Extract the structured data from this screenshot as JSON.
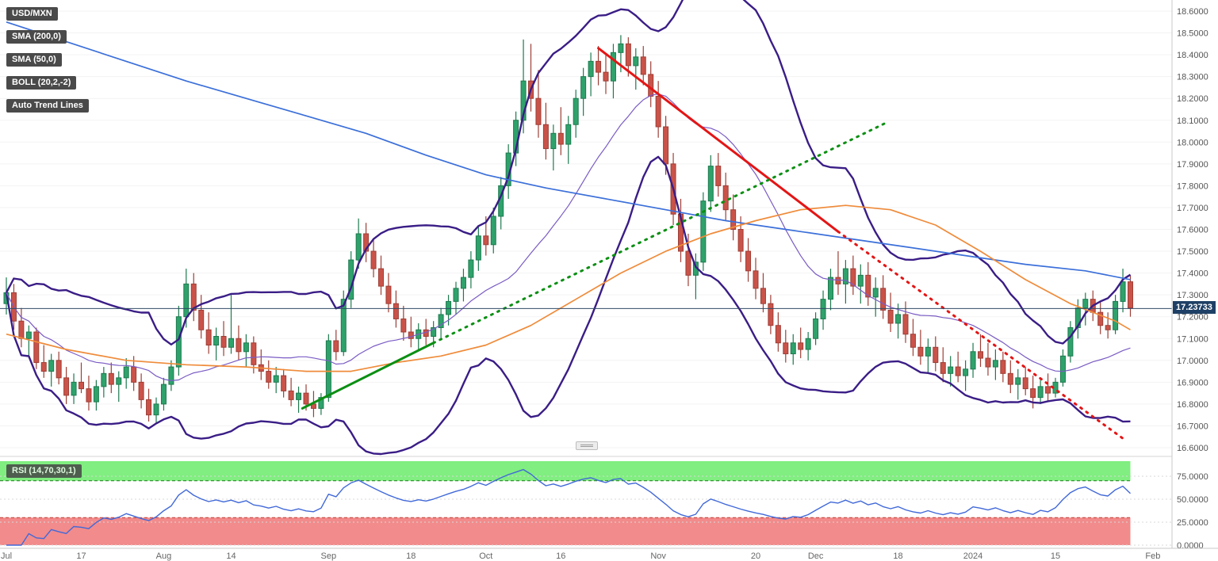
{
  "legend": {
    "pair": "USD/MXN",
    "items": [
      {
        "label": "SMA (200,0)"
      },
      {
        "label": "SMA (50,0)"
      },
      {
        "label": "BOLL (20,2,-2)"
      },
      {
        "label": "Auto Trend Lines"
      }
    ]
  },
  "chart_data": {
    "type": "candlestick",
    "symbol": "USD/MXN",
    "current_price": 17.23733,
    "current_price_label": "17.23733",
    "y_axis": {
      "min": 16.6,
      "max": 18.6,
      "step": 0.1,
      "tick_labels": [
        "18.6000",
        "18.5000",
        "18.4000",
        "18.3000",
        "18.2000",
        "18.1000",
        "18.0000",
        "17.9000",
        "17.8000",
        "17.7000",
        "17.6000",
        "17.5000",
        "17.4000",
        "17.3000",
        "17.2000",
        "17.1000",
        "17.0000",
        "16.9000",
        "16.8000",
        "16.7000",
        "16.6000"
      ]
    },
    "x_axis_labels": [
      {
        "text": "Jul",
        "i": 0
      },
      {
        "text": "17",
        "i": 10
      },
      {
        "text": "Aug",
        "i": 21
      },
      {
        "text": "14",
        "i": 30
      },
      {
        "text": "Sep",
        "i": 43
      },
      {
        "text": "18",
        "i": 54
      },
      {
        "text": "Oct",
        "i": 64
      },
      {
        "text": "16",
        "i": 74
      },
      {
        "text": "Nov",
        "i": 87
      },
      {
        "text": "20",
        "i": 100
      },
      {
        "text": "Dec",
        "i": 108
      },
      {
        "text": "18",
        "i": 119
      },
      {
        "text": "2024",
        "i": 129
      },
      {
        "text": "15",
        "i": 140
      },
      {
        "text": "Feb",
        "i": 153
      }
    ],
    "colors": {
      "up_fill": "#2fa26b",
      "up_border": "#1d7a4f",
      "down_fill": "#ca5349",
      "down_border": "#9e3e36",
      "price_line": "#2f4a66",
      "price_badge_bg": "#1f4066"
    },
    "candles_ohlc": [
      [
        17.26,
        17.38,
        17.21,
        17.31
      ],
      [
        17.31,
        17.35,
        17.14,
        17.18
      ],
      [
        17.18,
        17.24,
        17.06,
        17.1
      ],
      [
        17.1,
        17.16,
        17.02,
        17.13
      ],
      [
        17.13,
        17.15,
        16.96,
        16.99
      ],
      [
        16.99,
        17.07,
        16.92,
        16.95
      ],
      [
        16.95,
        17.03,
        16.88,
        17.0
      ],
      [
        17.0,
        17.04,
        16.89,
        16.92
      ],
      [
        16.92,
        16.97,
        16.8,
        16.84
      ],
      [
        16.84,
        16.94,
        16.8,
        16.9
      ],
      [
        16.9,
        16.99,
        16.85,
        16.87
      ],
      [
        16.87,
        16.93,
        16.77,
        16.81
      ],
      [
        16.81,
        16.91,
        16.77,
        16.88
      ],
      [
        16.88,
        16.97,
        16.83,
        16.94
      ],
      [
        16.94,
        16.99,
        16.85,
        16.89
      ],
      [
        16.89,
        16.95,
        16.81,
        16.92
      ],
      [
        16.92,
        17.01,
        16.87,
        16.97
      ],
      [
        16.97,
        17.02,
        16.86,
        16.9
      ],
      [
        16.9,
        16.94,
        16.78,
        16.82
      ],
      [
        16.82,
        16.87,
        16.72,
        16.75
      ],
      [
        16.75,
        16.83,
        16.71,
        16.8
      ],
      [
        16.8,
        16.92,
        16.77,
        16.89
      ],
      [
        16.89,
        17.0,
        16.86,
        16.97
      ],
      [
        16.97,
        17.25,
        16.93,
        17.2
      ],
      [
        17.2,
        17.42,
        17.15,
        17.35
      ],
      [
        17.35,
        17.4,
        17.18,
        17.23
      ],
      [
        17.23,
        17.3,
        17.1,
        17.14
      ],
      [
        17.14,
        17.22,
        17.03,
        17.07
      ],
      [
        17.07,
        17.15,
        17.0,
        17.11
      ],
      [
        17.11,
        17.18,
        17.02,
        17.06
      ],
      [
        17.06,
        17.3,
        17.03,
        17.1
      ],
      [
        17.1,
        17.16,
        17.0,
        17.04
      ],
      [
        17.04,
        17.12,
        16.97,
        17.08
      ],
      [
        17.08,
        17.11,
        16.94,
        16.98
      ],
      [
        16.98,
        17.05,
        16.91,
        16.95
      ],
      [
        16.95,
        17.0,
        16.87,
        16.9
      ],
      [
        16.9,
        16.97,
        16.85,
        16.93
      ],
      [
        16.93,
        16.96,
        16.83,
        16.86
      ],
      [
        16.86,
        16.92,
        16.79,
        16.82
      ],
      [
        16.82,
        16.88,
        16.76,
        16.85
      ],
      [
        16.85,
        16.89,
        16.77,
        16.8
      ],
      [
        16.8,
        16.86,
        16.74,
        16.78
      ],
      [
        16.78,
        16.85,
        16.75,
        16.83
      ],
      [
        16.83,
        17.12,
        16.81,
        17.09
      ],
      [
        17.09,
        17.14,
        17.0,
        17.04
      ],
      [
        17.04,
        17.32,
        17.02,
        17.28
      ],
      [
        17.28,
        17.5,
        17.24,
        17.46
      ],
      [
        17.46,
        17.65,
        17.42,
        17.58
      ],
      [
        17.58,
        17.63,
        17.45,
        17.5
      ],
      [
        17.5,
        17.56,
        17.38,
        17.42
      ],
      [
        17.42,
        17.48,
        17.3,
        17.34
      ],
      [
        17.34,
        17.4,
        17.22,
        17.26
      ],
      [
        17.26,
        17.32,
        17.15,
        17.19
      ],
      [
        17.19,
        17.25,
        17.09,
        17.13
      ],
      [
        17.13,
        17.2,
        17.06,
        17.1
      ],
      [
        17.1,
        17.17,
        17.05,
        17.14
      ],
      [
        17.14,
        17.19,
        17.07,
        17.11
      ],
      [
        17.11,
        17.18,
        17.06,
        17.15
      ],
      [
        17.15,
        17.24,
        17.1,
        17.21
      ],
      [
        17.21,
        17.3,
        17.16,
        17.27
      ],
      [
        17.27,
        17.36,
        17.21,
        17.33
      ],
      [
        17.33,
        17.42,
        17.27,
        17.38
      ],
      [
        17.38,
        17.5,
        17.33,
        17.46
      ],
      [
        17.46,
        17.62,
        17.41,
        17.57
      ],
      [
        17.57,
        17.66,
        17.48,
        17.53
      ],
      [
        17.53,
        17.7,
        17.49,
        17.66
      ],
      [
        17.66,
        17.84,
        17.6,
        17.8
      ],
      [
        17.8,
        17.99,
        17.74,
        17.95
      ],
      [
        17.95,
        18.14,
        17.89,
        18.1
      ],
      [
        18.1,
        18.47,
        18.04,
        18.28
      ],
      [
        18.28,
        18.45,
        18.14,
        18.2
      ],
      [
        18.2,
        18.33,
        18.02,
        18.08
      ],
      [
        18.08,
        18.18,
        17.92,
        17.97
      ],
      [
        17.97,
        18.08,
        17.87,
        18.04
      ],
      [
        18.04,
        18.16,
        17.94,
        17.99
      ],
      [
        17.99,
        18.12,
        17.9,
        18.08
      ],
      [
        18.08,
        18.24,
        18.02,
        18.2
      ],
      [
        18.2,
        18.34,
        18.12,
        18.3
      ],
      [
        18.3,
        18.41,
        18.21,
        18.37
      ],
      [
        18.37,
        18.44,
        18.26,
        18.32
      ],
      [
        18.32,
        18.4,
        18.22,
        18.28
      ],
      [
        18.28,
        18.45,
        18.2,
        18.41
      ],
      [
        18.41,
        18.49,
        18.32,
        18.45
      ],
      [
        18.45,
        18.48,
        18.3,
        18.35
      ],
      [
        18.35,
        18.43,
        18.24,
        18.39
      ],
      [
        18.39,
        18.44,
        18.26,
        18.31
      ],
      [
        18.31,
        18.37,
        18.16,
        18.21
      ],
      [
        18.21,
        18.28,
        18.02,
        18.07
      ],
      [
        18.07,
        18.12,
        17.85,
        17.9
      ],
      [
        17.9,
        17.95,
        17.62,
        17.67
      ],
      [
        17.67,
        17.74,
        17.45,
        17.5
      ],
      [
        17.5,
        17.58,
        17.34,
        17.39
      ],
      [
        17.39,
        17.49,
        17.28,
        17.45
      ],
      [
        17.45,
        17.77,
        17.41,
        17.73
      ],
      [
        17.73,
        17.94,
        17.68,
        17.89
      ],
      [
        17.89,
        17.95,
        17.75,
        17.8
      ],
      [
        17.8,
        17.86,
        17.64,
        17.69
      ],
      [
        17.69,
        17.76,
        17.55,
        17.6
      ],
      [
        17.6,
        17.66,
        17.45,
        17.5
      ],
      [
        17.5,
        17.56,
        17.36,
        17.41
      ],
      [
        17.41,
        17.47,
        17.28,
        17.33
      ],
      [
        17.33,
        17.4,
        17.22,
        17.26
      ],
      [
        17.26,
        17.3,
        17.12,
        17.16
      ],
      [
        17.16,
        17.22,
        17.04,
        17.08
      ],
      [
        17.08,
        17.14,
        16.99,
        17.03
      ],
      [
        17.03,
        17.12,
        16.98,
        17.08
      ],
      [
        17.08,
        17.15,
        17.01,
        17.05
      ],
      [
        17.05,
        17.13,
        17.0,
        17.1
      ],
      [
        17.1,
        17.22,
        17.07,
        17.19
      ],
      [
        17.19,
        17.32,
        17.14,
        17.28
      ],
      [
        17.28,
        17.42,
        17.23,
        17.38
      ],
      [
        17.38,
        17.5,
        17.3,
        17.35
      ],
      [
        17.35,
        17.46,
        17.26,
        17.42
      ],
      [
        17.42,
        17.48,
        17.3,
        17.34
      ],
      [
        17.34,
        17.44,
        17.26,
        17.39
      ],
      [
        17.39,
        17.45,
        17.25,
        17.29
      ],
      [
        17.29,
        17.38,
        17.2,
        17.33
      ],
      [
        17.33,
        17.39,
        17.19,
        17.23
      ],
      [
        17.23,
        17.31,
        17.13,
        17.17
      ],
      [
        17.17,
        17.26,
        17.1,
        17.21
      ],
      [
        17.21,
        17.27,
        17.08,
        17.12
      ],
      [
        17.12,
        17.19,
        17.02,
        17.06
      ],
      [
        17.06,
        17.14,
        16.98,
        17.02
      ],
      [
        17.02,
        17.1,
        16.94,
        17.06
      ],
      [
        17.06,
        17.11,
        16.95,
        16.99
      ],
      [
        16.99,
        17.06,
        16.9,
        16.94
      ],
      [
        16.94,
        17.02,
        16.88,
        16.97
      ],
      [
        16.97,
        17.04,
        16.9,
        16.93
      ],
      [
        16.93,
        17.0,
        16.86,
        16.96
      ],
      [
        16.96,
        17.08,
        16.92,
        17.04
      ],
      [
        17.04,
        17.12,
        16.97,
        17.01
      ],
      [
        17.01,
        17.08,
        16.93,
        16.97
      ],
      [
        16.97,
        17.05,
        16.91,
        17.0
      ],
      [
        17.0,
        17.04,
        16.9,
        16.94
      ],
      [
        16.94,
        17.0,
        16.85,
        16.89
      ],
      [
        16.89,
        16.96,
        16.82,
        16.92
      ],
      [
        16.92,
        16.97,
        16.84,
        16.87
      ],
      [
        16.87,
        16.93,
        16.78,
        16.83
      ],
      [
        16.83,
        16.91,
        16.8,
        16.88
      ],
      [
        16.88,
        16.94,
        16.81,
        16.85
      ],
      [
        16.85,
        16.92,
        16.83,
        16.9
      ],
      [
        16.9,
        17.05,
        16.88,
        17.02
      ],
      [
        17.02,
        17.18,
        16.99,
        17.15
      ],
      [
        17.15,
        17.28,
        17.1,
        17.24
      ],
      [
        17.24,
        17.31,
        17.16,
        17.28
      ],
      [
        17.28,
        17.32,
        17.18,
        17.22
      ],
      [
        17.22,
        17.27,
        17.12,
        17.16
      ],
      [
        17.16,
        17.22,
        17.1,
        17.14
      ],
      [
        17.14,
        17.3,
        17.12,
        17.27
      ],
      [
        17.27,
        17.42,
        17.22,
        17.36
      ],
      [
        17.36,
        17.39,
        17.2,
        17.24
      ]
    ],
    "overlays": {
      "sma200": {
        "label": "SMA (200,0)",
        "color": "#3b6fd9",
        "points": [
          [
            0,
            18.55
          ],
          [
            8,
            18.46
          ],
          [
            16,
            18.37
          ],
          [
            24,
            18.28
          ],
          [
            32,
            18.2
          ],
          [
            40,
            18.12
          ],
          [
            48,
            18.04
          ],
          [
            56,
            17.94
          ],
          [
            64,
            17.85
          ],
          [
            72,
            17.79
          ],
          [
            80,
            17.74
          ],
          [
            88,
            17.69
          ],
          [
            96,
            17.64
          ],
          [
            104,
            17.6
          ],
          [
            112,
            17.56
          ],
          [
            120,
            17.52
          ],
          [
            128,
            17.48
          ],
          [
            136,
            17.44
          ],
          [
            144,
            17.41
          ],
          [
            150,
            17.37
          ]
        ]
      },
      "sma50": {
        "label": "SMA (50,0)",
        "color": "#ef8b3a",
        "points": [
          [
            0,
            17.12
          ],
          [
            8,
            17.05
          ],
          [
            16,
            17.0
          ],
          [
            24,
            16.98
          ],
          [
            32,
            16.97
          ],
          [
            40,
            16.95
          ],
          [
            46,
            16.95
          ],
          [
            52,
            16.99
          ],
          [
            58,
            17.02
          ],
          [
            64,
            17.07
          ],
          [
            70,
            17.16
          ],
          [
            76,
            17.28
          ],
          [
            82,
            17.4
          ],
          [
            88,
            17.5
          ],
          [
            94,
            17.58
          ],
          [
            100,
            17.64
          ],
          [
            106,
            17.69
          ],
          [
            112,
            17.71
          ],
          [
            118,
            17.69
          ],
          [
            124,
            17.62
          ],
          [
            130,
            17.5
          ],
          [
            136,
            17.37
          ],
          [
            142,
            17.26
          ],
          [
            148,
            17.18
          ],
          [
            150,
            17.14
          ]
        ]
      },
      "bollinger": {
        "label": "BOLL (20,2,-2)",
        "period": 20,
        "stddev": 2,
        "band_color": "#3a1d86",
        "mid_color": "#7a5cc4"
      },
      "trend_lines": [
        {
          "name": "downtrend-solid",
          "color": "#e41515",
          "style": "solid",
          "from": [
            79,
            18.43
          ],
          "to": [
            111,
            17.59
          ]
        },
        {
          "name": "downtrend-dotted",
          "color": "#e41515",
          "style": "dotted",
          "from": [
            111,
            17.59
          ],
          "to": [
            149.5,
            16.63
          ]
        },
        {
          "name": "uptrend-solid",
          "color": "#0b8f13",
          "style": "solid",
          "from": [
            39.5,
            16.78
          ],
          "to": [
            57,
            17.08
          ]
        },
        {
          "name": "uptrend-dotted",
          "color": "#0b8f13",
          "style": "dotted",
          "from": [
            57,
            17.08
          ],
          "to": [
            117.5,
            18.09
          ]
        }
      ]
    },
    "rsi": {
      "label": "RSI (14,70,30,1)",
      "period": 14,
      "overbought": 70,
      "oversold": 30,
      "axis_tick_labels": [
        "75.0000",
        "50.0000",
        "25.0000",
        "0.0000"
      ],
      "axis_tick_values": [
        75,
        50,
        25,
        0
      ],
      "line_color": "#4169d8",
      "overbought_zone_color": "#80ee80",
      "oversold_zone_color": "#f28b8b"
    }
  }
}
